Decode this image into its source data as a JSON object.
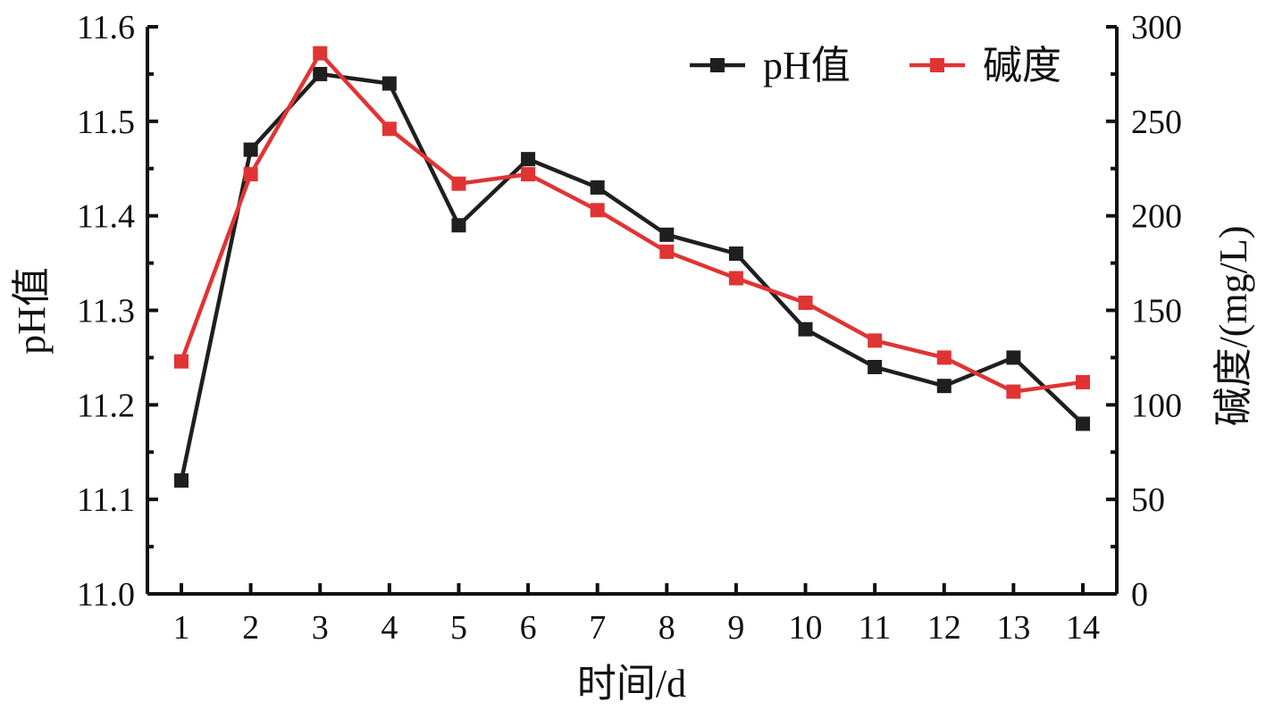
{
  "chart_data": {
    "type": "line",
    "x": [
      1,
      2,
      3,
      4,
      5,
      6,
      7,
      8,
      9,
      10,
      11,
      12,
      13,
      14
    ],
    "xlabel": "时间/d",
    "ylabel_left": "pH值",
    "ylabel_right": "碱度/(mg/L)",
    "ylim_left": [
      11.0,
      11.6
    ],
    "ylim_right": [
      0,
      300
    ],
    "yticks_left": [
      "11.0",
      "11.1",
      "11.2",
      "11.3",
      "11.4",
      "11.5",
      "11.6"
    ],
    "yticks_right": [
      "0",
      "50",
      "100",
      "150",
      "200",
      "250",
      "300"
    ],
    "grid": false,
    "legend_position": "top-right",
    "series": [
      {
        "name": "pH值",
        "axis": "left",
        "color": "#1f1f1f",
        "values": [
          11.12,
          11.47,
          11.55,
          11.54,
          11.39,
          11.46,
          11.43,
          11.38,
          11.36,
          11.28,
          11.24,
          11.22,
          11.25,
          11.18
        ]
      },
      {
        "name": "碱度",
        "axis": "right",
        "color": "#e03434",
        "values": [
          123,
          222,
          286,
          246,
          217,
          222,
          203,
          181,
          167,
          154,
          134,
          125,
          107,
          112
        ]
      }
    ]
  }
}
